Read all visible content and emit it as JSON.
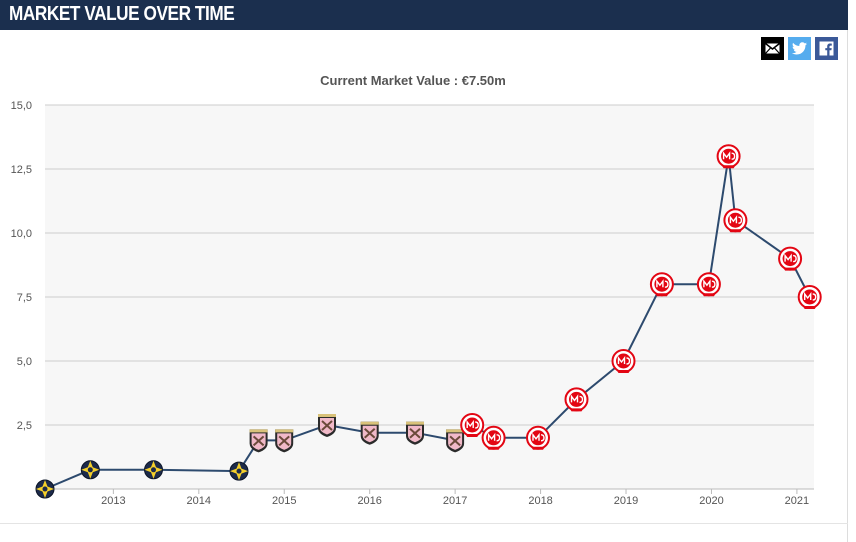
{
  "header": {
    "title": "MARKET VALUE OVER TIME"
  },
  "share": {
    "mail_icon": "mail-icon",
    "twitter_icon": "twitter-icon",
    "facebook_icon": "facebook-icon"
  },
  "colors": {
    "header_bg": "#1b2f4e",
    "line": "#2d4a6e",
    "grid": "#cccccc",
    "plot_bg": "#f7f7f7",
    "aik_crest": "#1c2a4a",
    "aik_accent": "#f4cf2a",
    "palermo_crest": "#f1b9c8",
    "mainz_crest": "#e30613"
  },
  "chart_data": {
    "type": "line",
    "title": "Current Market Value : €7.50m",
    "xlabel": "",
    "ylabel": "",
    "ylim": [
      0,
      15
    ],
    "yticks": [
      "2,5",
      "5,0",
      "7,5",
      "10,0",
      "12,5",
      "15,0"
    ],
    "ytick_values": [
      2.5,
      5.0,
      7.5,
      10.0,
      12.5,
      15.0
    ],
    "xticks": [
      "2013",
      "2014",
      "2015",
      "2016",
      "2017",
      "2018",
      "2019",
      "2020",
      "2021"
    ],
    "xtick_values": [
      2013,
      2014,
      2015,
      2016,
      2017,
      2018,
      2019,
      2020,
      2021
    ],
    "xlim": [
      2012.2,
      2021.2
    ],
    "grid": true,
    "series": [
      {
        "points": [
          {
            "x": 2012.2,
            "y": 0.0,
            "club": "aik"
          },
          {
            "x": 2012.73,
            "y": 0.75,
            "club": "aik"
          },
          {
            "x": 2013.47,
            "y": 0.75,
            "club": "aik"
          },
          {
            "x": 2014.47,
            "y": 0.7,
            "club": "aik"
          },
          {
            "x": 2014.7,
            "y": 1.9,
            "club": "palermo"
          },
          {
            "x": 2015.0,
            "y": 1.9,
            "club": "palermo"
          },
          {
            "x": 2015.5,
            "y": 2.5,
            "club": "palermo"
          },
          {
            "x": 2016.0,
            "y": 2.2,
            "club": "palermo"
          },
          {
            "x": 2016.53,
            "y": 2.2,
            "club": "palermo"
          },
          {
            "x": 2017.0,
            "y": 1.9,
            "club": "palermo"
          },
          {
            "x": 2017.2,
            "y": 2.5,
            "club": "mainz"
          },
          {
            "x": 2017.45,
            "y": 2.0,
            "club": "mainz"
          },
          {
            "x": 2017.97,
            "y": 2.0,
            "club": "mainz"
          },
          {
            "x": 2018.42,
            "y": 3.5,
            "club": "mainz"
          },
          {
            "x": 2018.97,
            "y": 5.0,
            "club": "mainz"
          },
          {
            "x": 2019.42,
            "y": 8.0,
            "club": "mainz"
          },
          {
            "x": 2019.97,
            "y": 8.0,
            "club": "mainz"
          },
          {
            "x": 2020.2,
            "y": 13.0,
            "club": "mainz"
          },
          {
            "x": 2020.28,
            "y": 10.5,
            "club": "mainz"
          },
          {
            "x": 2020.92,
            "y": 9.0,
            "club": "mainz"
          },
          {
            "x": 2021.15,
            "y": 7.5,
            "club": "mainz"
          }
        ]
      }
    ]
  }
}
